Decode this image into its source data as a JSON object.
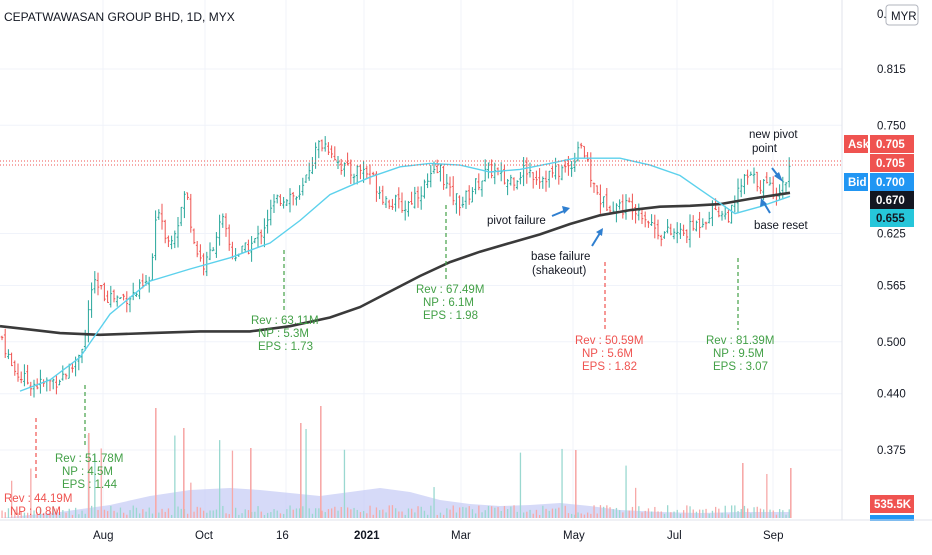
{
  "header": {
    "title": "CEPATWAWASAN GROUP BHD, 1D, MYX",
    "currency_label": "MYR",
    "top_price_partial": "0."
  },
  "colors": {
    "up": "#26a69a",
    "down": "#ef5350",
    "ma_long": "#3a3a3a",
    "ma_short": "#5cd1ec",
    "volume_area": "#c8cdf6",
    "annotation_green": "#43a047",
    "annotation_red": "#ef5350",
    "arrow_blue": "#2f7fd0"
  },
  "chart_data": {
    "type": "candlestick",
    "title": "CEPATWAWASAN GROUP BHD, 1D, MYX",
    "currency": "MYR",
    "y_ticks": [
      "0.815",
      "0.750",
      "0.625",
      "0.565",
      "0.500",
      "0.440",
      "0.375"
    ],
    "ylim": [
      0.305,
      0.885
    ],
    "x_ticks": [
      "Aug",
      "Oct",
      "16",
      "2021",
      "Mar",
      "May",
      "Jul",
      "Sep"
    ],
    "grid": true,
    "price_labels": [
      {
        "label": "Ask",
        "value": "0.705",
        "color": "#ef5350"
      },
      {
        "label": "",
        "value": "0.705",
        "color": "#ef5350"
      },
      {
        "label": "Bid",
        "value": "0.700",
        "color": "#2196f3"
      },
      {
        "label": "",
        "value": "0.670",
        "color": "#131722"
      },
      {
        "label": "",
        "value": "0.655",
        "color": "#26c6da"
      }
    ],
    "volume_label": "535.5K",
    "moving_averages": [
      {
        "kind": "long",
        "points": [
          [
            0,
            0.518
          ],
          [
            30,
            0.514
          ],
          [
            60,
            0.51
          ],
          [
            100,
            0.508
          ],
          [
            150,
            0.51
          ],
          [
            200,
            0.512
          ],
          [
            250,
            0.512
          ],
          [
            290,
            0.518
          ],
          [
            330,
            0.528
          ],
          [
            360,
            0.54
          ],
          [
            390,
            0.558
          ],
          [
            420,
            0.576
          ],
          [
            450,
            0.592
          ],
          [
            480,
            0.604
          ],
          [
            510,
            0.614
          ],
          [
            540,
            0.624
          ],
          [
            570,
            0.636
          ],
          [
            600,
            0.646
          ],
          [
            630,
            0.652
          ],
          [
            660,
            0.656
          ],
          [
            690,
            0.657
          ],
          [
            720,
            0.659
          ],
          [
            750,
            0.665
          ],
          [
            790,
            0.672
          ]
        ]
      },
      {
        "kind": "short",
        "points": [
          [
            20,
            0.443
          ],
          [
            50,
            0.456
          ],
          [
            80,
            0.482
          ],
          [
            110,
            0.532
          ],
          [
            150,
            0.57
          ],
          [
            190,
            0.584
          ],
          [
            230,
            0.597
          ],
          [
            270,
            0.614
          ],
          [
            300,
            0.64
          ],
          [
            330,
            0.67
          ],
          [
            370,
            0.69
          ],
          [
            400,
            0.702
          ],
          [
            430,
            0.706
          ],
          [
            460,
            0.704
          ],
          [
            490,
            0.696
          ],
          [
            520,
            0.699
          ],
          [
            550,
            0.706
          ],
          [
            575,
            0.712
          ],
          [
            600,
            0.712
          ],
          [
            620,
            0.712
          ],
          [
            650,
            0.704
          ],
          [
            680,
            0.692
          ],
          [
            700,
            0.676
          ],
          [
            720,
            0.66
          ],
          [
            735,
            0.648
          ],
          [
            760,
            0.656
          ],
          [
            790,
            0.668
          ]
        ]
      }
    ],
    "annotations": [
      {
        "lines": [
          "new pivot",
          "point"
        ],
        "color": "#131722"
      },
      {
        "lines": [
          "pivot failure"
        ],
        "color": "#131722"
      },
      {
        "lines": [
          "base failure",
          "(shakeout)"
        ],
        "color": "#131722"
      },
      {
        "lines": [
          "base reset"
        ],
        "color": "#131722"
      },
      {
        "lines": [
          "Rev : 63.11M",
          "NP : 5.3M",
          "EPS : 1.73"
        ],
        "color": "#43a047"
      },
      {
        "lines": [
          "Rev : 67.49M",
          "NP : 6.1M",
          "EPS : 1.98"
        ],
        "color": "#43a047"
      },
      {
        "lines": [
          "Rev : 50.59M",
          "NP : 5.6M",
          "EPS : 1.82"
        ],
        "color": "#ef5350"
      },
      {
        "lines": [
          "Rev : 81.39M",
          "NP : 9.5M",
          "EPS : 3.07"
        ],
        "color": "#43a047"
      },
      {
        "lines": [
          "Rev : 51.78M",
          "NP : 4.5M",
          "EPS : 1.44"
        ],
        "color": "#43a047"
      },
      {
        "lines": [
          "Rev : 44.19M",
          "NP : 0.8M"
        ],
        "color": "#ef5350"
      }
    ]
  }
}
